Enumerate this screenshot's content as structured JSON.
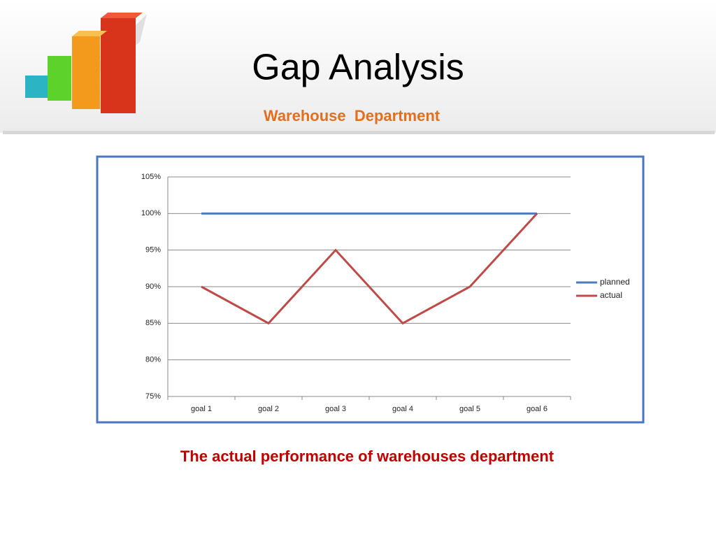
{
  "slide": {
    "title": "Gap Analysis",
    "subtitle": "Warehouse  Department",
    "caption": "The actual performance of warehouses department"
  },
  "chart_data": {
    "type": "line",
    "categories": [
      "goal 1",
      "goal 2",
      "goal 3",
      "goal 4",
      "goal 5",
      "goal 6"
    ],
    "series": [
      {
        "name": "planned",
        "color": "#4a7ebb",
        "values": [
          100,
          100,
          100,
          100,
          100,
          100
        ]
      },
      {
        "name": "actual",
        "color": "#be4b48",
        "values": [
          90,
          85,
          95,
          85,
          90,
          100
        ]
      }
    ],
    "ylim": [
      75,
      105
    ],
    "yticks": [
      {
        "value": 75,
        "label": "75%"
      },
      {
        "value": 80,
        "label": "80%"
      },
      {
        "value": 85,
        "label": "85%"
      },
      {
        "value": 90,
        "label": "90%"
      },
      {
        "value": 95,
        "label": "95%"
      },
      {
        "value": 100,
        "label": "100%"
      },
      {
        "value": 105,
        "label": "105%"
      }
    ],
    "grid": true,
    "legend": "right"
  }
}
